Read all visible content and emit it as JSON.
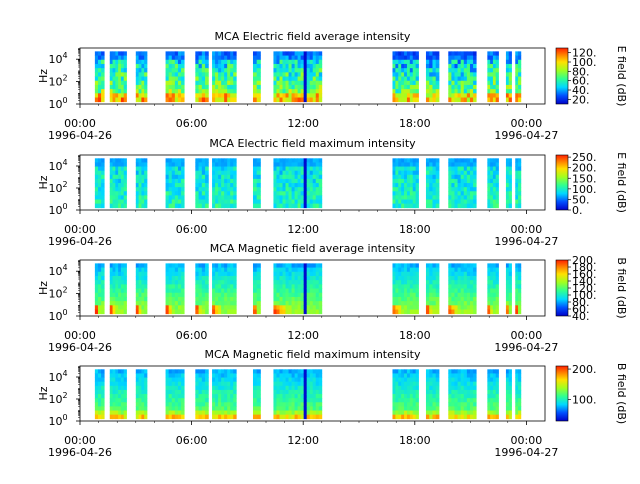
{
  "chart_data": [
    {
      "type": "heatmap",
      "title": "MCA  Electric field average intensity",
      "ylabel": "Hz",
      "yscale": "log",
      "ylim": [
        1,
        100000
      ],
      "y_ticks": [
        {
          "base": "10",
          "exp": "0",
          "value": 1
        },
        {
          "base": "10",
          "exp": "2",
          "value": 100
        },
        {
          "base": "10",
          "exp": "4",
          "value": 10000
        }
      ],
      "xlim": [
        "1996-04-26 00:00",
        "1996-04-27 01:00"
      ],
      "x_ticks": [
        {
          "label": "00:00",
          "date": "1996-04-26",
          "hours": 0
        },
        {
          "label": "06:00",
          "date": "",
          "hours": 6
        },
        {
          "label": "12:00",
          "date": "",
          "hours": 12
        },
        {
          "label": "18:00",
          "date": "",
          "hours": 18
        },
        {
          "label": "00:00",
          "date": "1996-04-27",
          "hours": 24
        }
      ],
      "colorbar": {
        "label": "E field (dB)",
        "min": 10,
        "max": 130,
        "ticks": [
          {
            "label": "20.",
            "value": 20
          },
          {
            "label": "40.",
            "value": 40
          },
          {
            "label": "60.",
            "value": 60
          },
          {
            "label": "80.",
            "value": 80
          },
          {
            "label": "100.",
            "value": 100
          },
          {
            "label": "120.",
            "value": 120
          }
        ]
      },
      "data_intervals_hours": [
        [
          0.8,
          1.3
        ],
        [
          1.6,
          2.5
        ],
        [
          3.0,
          3.6
        ],
        [
          4.6,
          5.6
        ],
        [
          6.2,
          6.9
        ],
        [
          7.1,
          8.4
        ],
        [
          9.3,
          9.7
        ],
        [
          10.4,
          13.0
        ],
        [
          16.8,
          18.2
        ],
        [
          18.6,
          19.3
        ],
        [
          19.8,
          21.3
        ],
        [
          21.9,
          22.5
        ],
        [
          22.9,
          23.2
        ],
        [
          23.4,
          23.7
        ]
      ],
      "intensity": "average-electric"
    },
    {
      "type": "heatmap",
      "title": "MCA  Electric field maximum intensity",
      "ylabel": "Hz",
      "yscale": "log",
      "ylim": [
        1,
        100000
      ],
      "y_ticks": [
        {
          "base": "10",
          "exp": "0",
          "value": 1
        },
        {
          "base": "10",
          "exp": "2",
          "value": 100
        },
        {
          "base": "10",
          "exp": "4",
          "value": 10000
        }
      ],
      "xlim": [
        "1996-04-26 00:00",
        "1996-04-27 01:00"
      ],
      "x_ticks": [
        {
          "label": "00:00",
          "date": "1996-04-26",
          "hours": 0
        },
        {
          "label": "06:00",
          "date": "",
          "hours": 6
        },
        {
          "label": "12:00",
          "date": "",
          "hours": 12
        },
        {
          "label": "18:00",
          "date": "",
          "hours": 18
        },
        {
          "label": "00:00",
          "date": "1996-04-27",
          "hours": 24
        }
      ],
      "colorbar": {
        "label": "E field (dB)",
        "min": 0,
        "max": 260,
        "ticks": [
          {
            "label": "0.",
            "value": 0
          },
          {
            "label": "50.",
            "value": 50
          },
          {
            "label": "100.",
            "value": 100
          },
          {
            "label": "150.",
            "value": 150
          },
          {
            "label": "200.",
            "value": 200
          },
          {
            "label": "250.",
            "value": 250
          }
        ]
      },
      "data_intervals_hours": [
        [
          0.8,
          1.3
        ],
        [
          1.6,
          2.5
        ],
        [
          3.0,
          3.6
        ],
        [
          4.6,
          5.6
        ],
        [
          6.2,
          6.9
        ],
        [
          7.1,
          8.4
        ],
        [
          9.3,
          9.7
        ],
        [
          10.4,
          13.0
        ],
        [
          16.8,
          18.2
        ],
        [
          18.6,
          19.3
        ],
        [
          19.8,
          21.3
        ],
        [
          21.9,
          22.5
        ],
        [
          22.9,
          23.2
        ],
        [
          23.4,
          23.7
        ]
      ],
      "intensity": "maximum-electric"
    },
    {
      "type": "heatmap",
      "title": "MCA  Magnetic field average intensity",
      "ylabel": "Hz",
      "yscale": "log",
      "ylim": [
        1,
        100000
      ],
      "y_ticks": [
        {
          "base": "10",
          "exp": "0",
          "value": 1
        },
        {
          "base": "10",
          "exp": "2",
          "value": 100
        },
        {
          "base": "10",
          "exp": "4",
          "value": 10000
        }
      ],
      "xlim": [
        "1996-04-26 00:00",
        "1996-04-27 01:00"
      ],
      "x_ticks": [
        {
          "label": "00:00",
          "date": "1996-04-26",
          "hours": 0
        },
        {
          "label": "06:00",
          "date": "",
          "hours": 6
        },
        {
          "label": "12:00",
          "date": "",
          "hours": 12
        },
        {
          "label": "18:00",
          "date": "",
          "hours": 18
        },
        {
          "label": "00:00",
          "date": "1996-04-27",
          "hours": 24
        }
      ],
      "colorbar": {
        "label": "B field (dB)",
        "min": 40,
        "max": 200,
        "ticks": [
          {
            "label": "40.",
            "value": 40
          },
          {
            "label": "60.",
            "value": 60
          },
          {
            "label": "80.",
            "value": 80
          },
          {
            "label": "100.",
            "value": 100
          },
          {
            "label": "120.",
            "value": 120
          },
          {
            "label": "140.",
            "value": 140
          },
          {
            "label": "160.",
            "value": 160
          },
          {
            "label": "180.",
            "value": 180
          },
          {
            "label": "200.",
            "value": 200
          }
        ]
      },
      "data_intervals_hours": [
        [
          0.8,
          1.3
        ],
        [
          1.6,
          2.5
        ],
        [
          3.0,
          3.6
        ],
        [
          4.6,
          5.6
        ],
        [
          6.2,
          6.9
        ],
        [
          7.1,
          8.4
        ],
        [
          9.3,
          9.7
        ],
        [
          10.4,
          13.0
        ],
        [
          16.8,
          18.2
        ],
        [
          18.6,
          19.3
        ],
        [
          19.8,
          21.3
        ],
        [
          21.9,
          22.5
        ],
        [
          22.9,
          23.2
        ],
        [
          23.4,
          23.7
        ]
      ],
      "intensity": "average-magnetic"
    },
    {
      "type": "heatmap",
      "title": "MCA  Magnetic field maximum intensity",
      "ylabel": "Hz",
      "yscale": "log",
      "ylim": [
        1,
        100000
      ],
      "y_ticks": [
        {
          "base": "10",
          "exp": "0",
          "value": 1
        },
        {
          "base": "10",
          "exp": "2",
          "value": 100
        },
        {
          "base": "10",
          "exp": "4",
          "value": 10000
        }
      ],
      "xlim": [
        "1996-04-26 00:00",
        "1996-04-27 01:00"
      ],
      "x_ticks": [
        {
          "label": "00:00",
          "date": "1996-04-26",
          "hours": 0
        },
        {
          "label": "06:00",
          "date": "",
          "hours": 6
        },
        {
          "label": "12:00",
          "date": "",
          "hours": 12
        },
        {
          "label": "18:00",
          "date": "",
          "hours": 18
        },
        {
          "label": "00:00",
          "date": "1996-04-27",
          "hours": 24
        }
      ],
      "colorbar": {
        "label": "B field (dB)",
        "min": 30,
        "max": 210,
        "ticks": [
          {
            "label": "100.",
            "value": 100
          },
          {
            "label": "200.",
            "value": 200
          }
        ]
      },
      "data_intervals_hours": [
        [
          0.8,
          1.3
        ],
        [
          1.6,
          2.5
        ],
        [
          3.0,
          3.6
        ],
        [
          4.6,
          5.6
        ],
        [
          6.2,
          6.9
        ],
        [
          7.1,
          8.4
        ],
        [
          9.3,
          9.7
        ],
        [
          10.4,
          13.0
        ],
        [
          16.8,
          18.2
        ],
        [
          18.6,
          19.3
        ],
        [
          19.8,
          21.3
        ],
        [
          21.9,
          22.5
        ],
        [
          22.9,
          23.2
        ],
        [
          23.4,
          23.7
        ]
      ],
      "intensity": "maximum-magnetic"
    }
  ]
}
